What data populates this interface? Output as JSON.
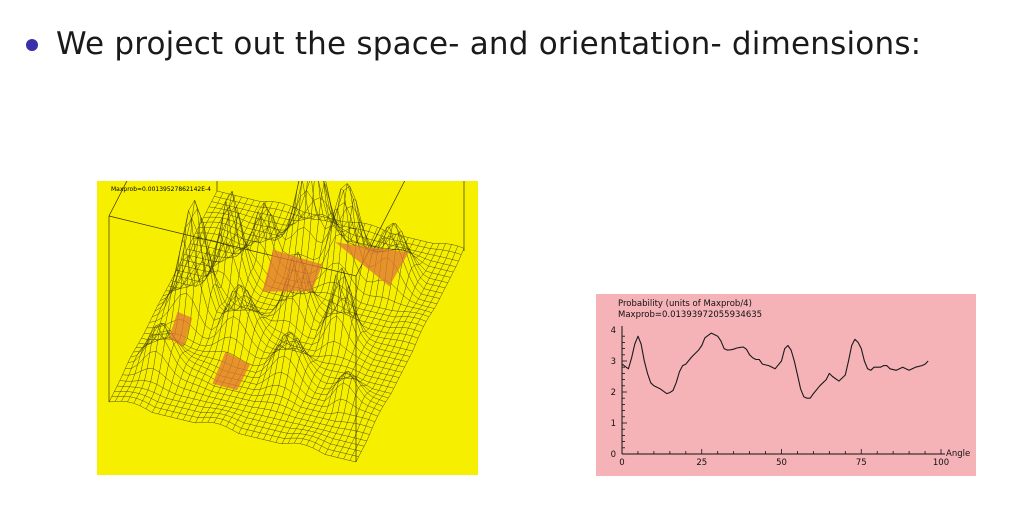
{
  "slide": {
    "bullet": "We project out the space- and orientation- dimensions:"
  },
  "surface_plot": {
    "caption": "Maxprob=0.00139527862142E-4",
    "background": "#f7ef00",
    "mesh_color": "#2b2a12",
    "highlight_color": "#e0743a"
  },
  "chart_data": {
    "type": "line",
    "title": "Probability (units of Maxprob/4)",
    "subtitle": "Maxprob=0.01393972055934635",
    "xlabel": "Angle",
    "ylabel": "",
    "xlim": [
      0,
      100
    ],
    "ylim": [
      0,
      4
    ],
    "x_ticks": [
      0,
      25,
      50,
      75,
      100
    ],
    "y_ticks": [
      0,
      1,
      2,
      3,
      4
    ],
    "background": "#f5b3b8",
    "line_color": "#1a1a1a",
    "grid": false,
    "series": [
      {
        "x": [
          0,
          2,
          3,
          4,
          5,
          6,
          7,
          8,
          9,
          10,
          12,
          14,
          15,
          16,
          17,
          18,
          19,
          20,
          22,
          24,
          25,
          26,
          28,
          29,
          30,
          31,
          32,
          33,
          34,
          35,
          36,
          37,
          38,
          39,
          40,
          41,
          42,
          43,
          44,
          46,
          48,
          50,
          51,
          52,
          53,
          54,
          55,
          56,
          57,
          58,
          59,
          60,
          62,
          64,
          65,
          66,
          68,
          70,
          71,
          72,
          73,
          74,
          75,
          76,
          77,
          78,
          79,
          80,
          81,
          82,
          83,
          84,
          86,
          88,
          89,
          90,
          92,
          94,
          95,
          96
        ],
        "y": [
          2.9,
          2.75,
          3.1,
          3.55,
          3.8,
          3.55,
          3.0,
          2.6,
          2.3,
          2.2,
          2.1,
          1.95,
          1.98,
          2.05,
          2.3,
          2.65,
          2.85,
          2.9,
          3.15,
          3.35,
          3.5,
          3.75,
          3.9,
          3.85,
          3.8,
          3.65,
          3.4,
          3.35,
          3.36,
          3.38,
          3.42,
          3.44,
          3.45,
          3.38,
          3.2,
          3.1,
          3.05,
          3.05,
          2.9,
          2.85,
          2.75,
          3.0,
          3.4,
          3.5,
          3.35,
          3.0,
          2.55,
          2.1,
          1.85,
          1.8,
          1.8,
          1.95,
          2.2,
          2.4,
          2.6,
          2.5,
          2.35,
          2.55,
          3.0,
          3.5,
          3.7,
          3.6,
          3.4,
          3.0,
          2.75,
          2.7,
          2.8,
          2.8,
          2.8,
          2.85,
          2.85,
          2.75,
          2.7,
          2.8,
          2.75,
          2.7,
          2.8,
          2.85,
          2.9,
          3.0
        ]
      }
    ]
  }
}
